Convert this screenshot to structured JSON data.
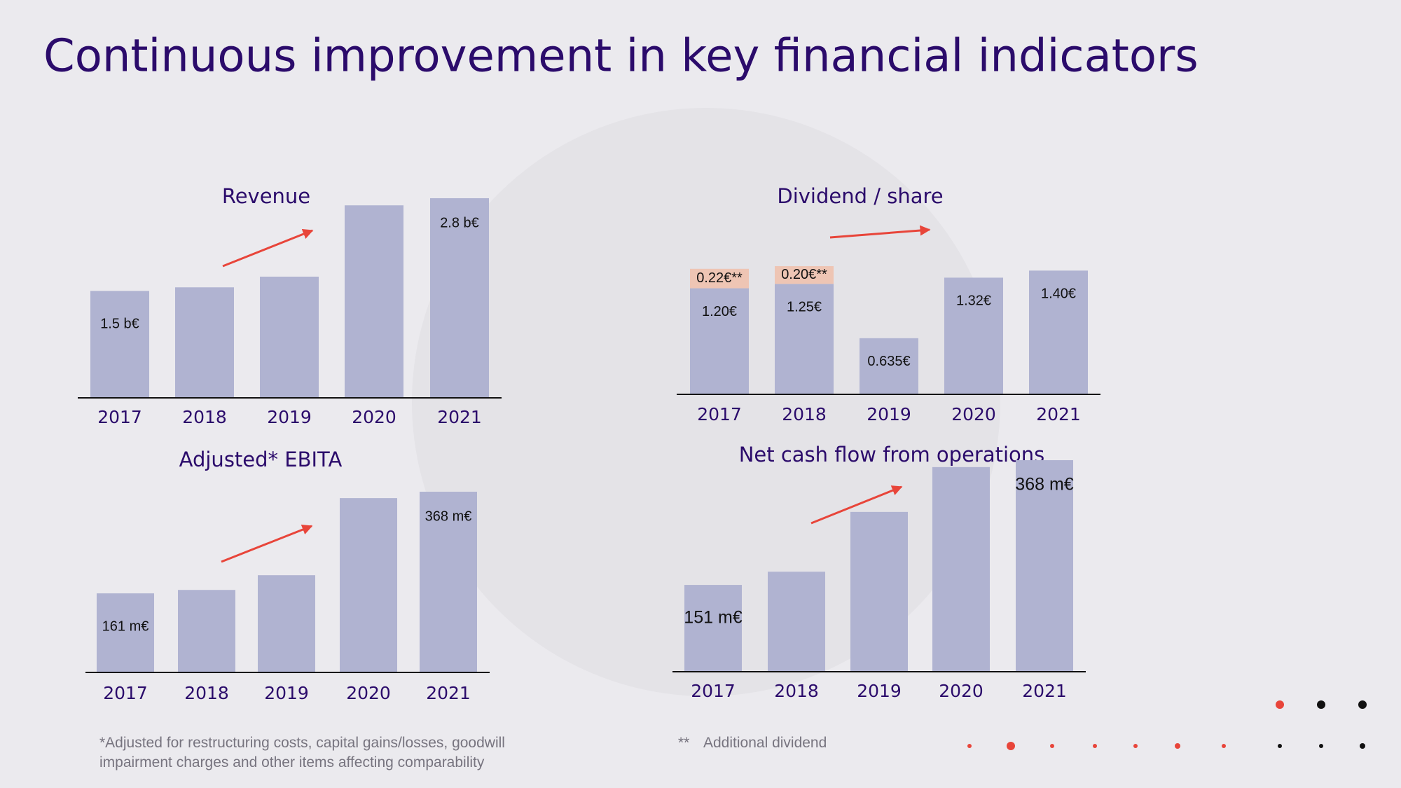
{
  "slide": {
    "title": "Continuous improvement in key financial indicators",
    "footnote": "*Adjusted for restructuring costs, capital gains/losses, goodwill impairment charges and other items affecting comparability",
    "footnote2_marker": "**",
    "footnote2": "Additional dividend"
  },
  "chart_data": [
    {
      "type": "bar",
      "title": "Revenue",
      "categories": [
        "2017",
        "2018",
        "2019",
        "2020",
        "2021"
      ],
      "values": [
        1.5,
        1.55,
        1.7,
        2.7,
        2.8
      ],
      "value_labels": [
        "1.5 b€",
        null,
        null,
        null,
        "2.8 b€"
      ],
      "color": "#b0b3d1"
    },
    {
      "type": "stacked_bar",
      "title": "Dividend / share",
      "categories": [
        "2017",
        "2018",
        "2019",
        "2020",
        "2021"
      ],
      "series": [
        {
          "color": "#b0b3d1",
          "values": [
            1.2,
            1.25,
            0.635,
            1.32,
            1.4
          ],
          "value_labels": [
            "1.20€",
            "1.25€",
            "0.635€",
            "1.32€",
            "1.40€"
          ]
        },
        {
          "color": "#eec5b4",
          "values": [
            0.22,
            0.2,
            null,
            null,
            null
          ],
          "value_labels": [
            "0.22€**",
            "0.20€**",
            null,
            null,
            null
          ]
        }
      ]
    },
    {
      "type": "bar",
      "title": "Adjusted* EBITA",
      "categories": [
        "2017",
        "2018",
        "2019",
        "2020",
        "2021"
      ],
      "values": [
        161,
        168,
        198,
        355,
        368
      ],
      "value_labels": [
        "161 m€",
        null,
        null,
        null,
        "368 m€"
      ],
      "color": "#b0b3d1"
    },
    {
      "type": "bar",
      "title": "Net cash flow from operations",
      "categories": [
        "2017",
        "2018",
        "2019",
        "2020",
        "2021"
      ],
      "values": [
        151,
        174,
        278,
        356,
        368
      ],
      "value_labels": [
        "151 m€",
        null,
        null,
        null,
        "368 m€"
      ],
      "color": "#b0b3d1"
    }
  ]
}
